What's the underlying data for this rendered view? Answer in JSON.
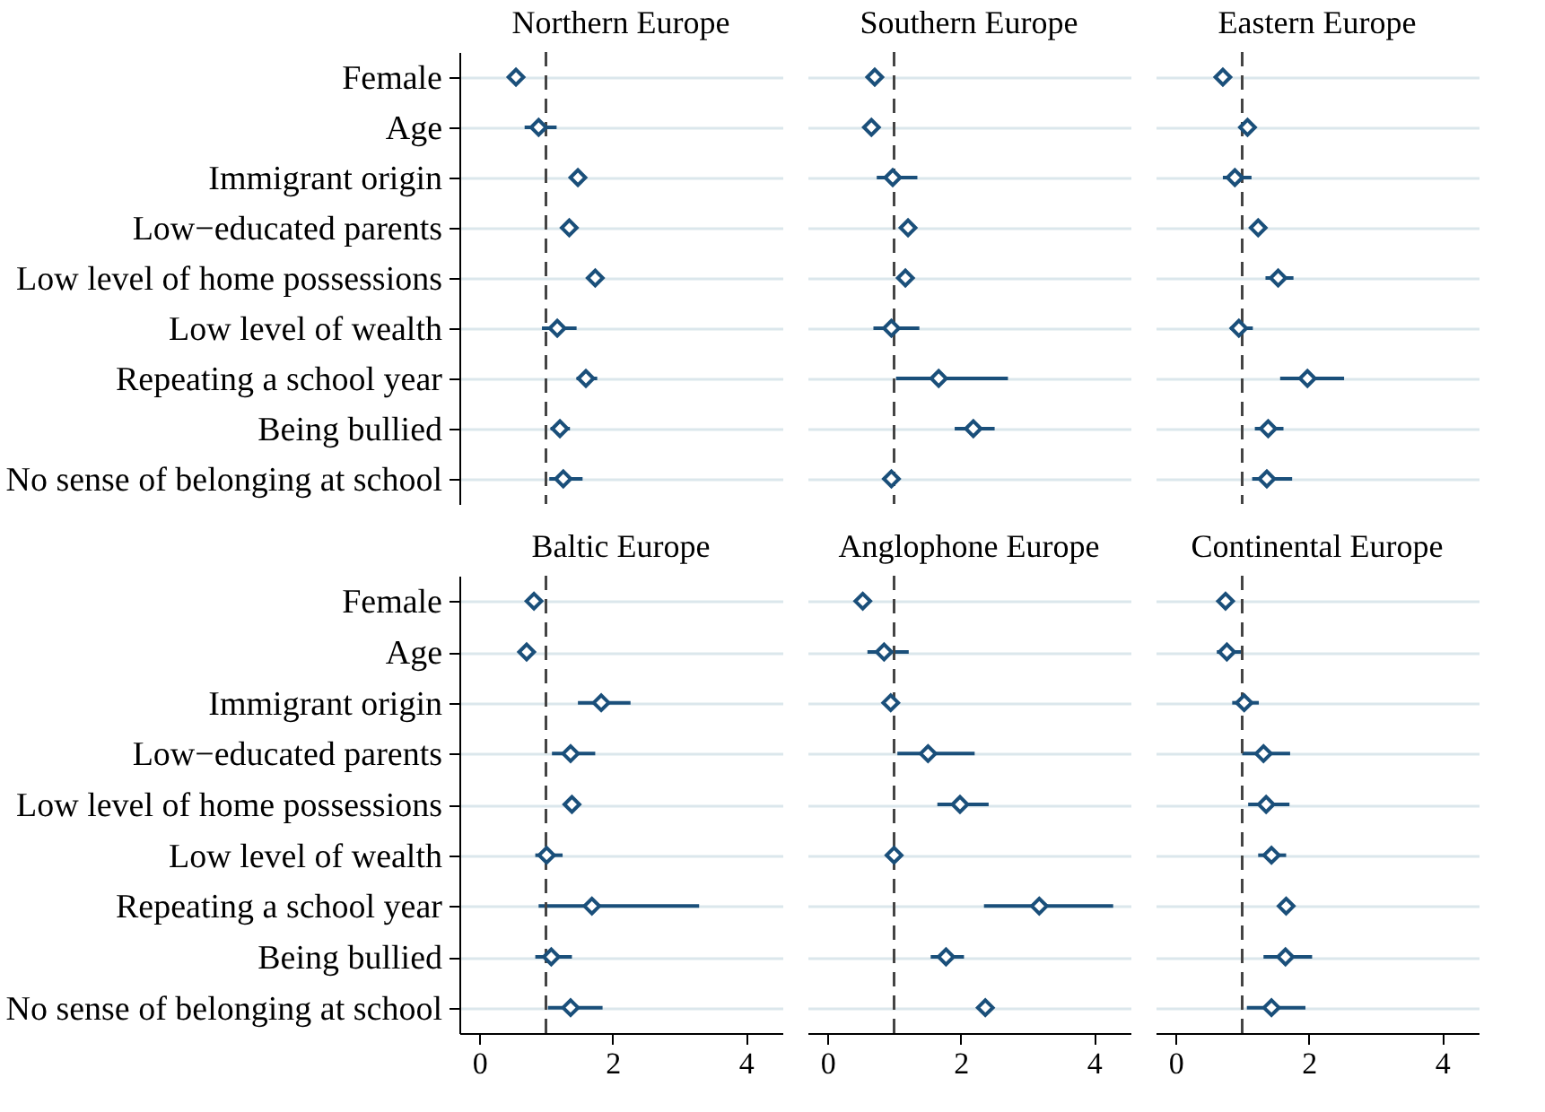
{
  "chart_data": [
    {
      "type": "scatter",
      "title": "Northern Europe",
      "orientation": "horizontal",
      "categories": [
        "Female",
        "Age",
        "Immigrant origin",
        "Low−educated parents",
        "Low level of home possessions",
        "Low level of wealth",
        "Repeating a school year",
        "Being bullied",
        "No sense of belonging at school"
      ],
      "values": [
        0.55,
        0.89,
        1.48,
        1.35,
        1.74,
        1.17,
        1.6,
        1.21,
        1.26
      ],
      "errors": [
        null,
        [
          0.68,
          1.16
        ],
        null,
        null,
        null,
        [
          0.94,
          1.46
        ],
        [
          1.46,
          1.77
        ],
        [
          1.07,
          1.36
        ],
        [
          1.05,
          1.55
        ]
      ],
      "color": "#1a4f7a",
      "marker": "diamond",
      "xlim": [
        -0.3,
        4.55
      ],
      "xticks": [
        0,
        2,
        4
      ],
      "ref_lines": [
        {
          "axis": "x",
          "value": 1,
          "line_style": "dashed"
        }
      ],
      "grid": "y",
      "tick_labels": "y"
    },
    {
      "type": "scatter",
      "title": "Southern Europe",
      "orientation": "horizontal",
      "categories": [
        null,
        null,
        null,
        null,
        null,
        null,
        null,
        null,
        null
      ],
      "values": [
        0.71,
        0.66,
        0.98,
        1.21,
        1.17,
        0.96,
        1.67,
        2.19,
        0.96
      ],
      "errors": [
        null,
        null,
        [
          0.74,
          1.35
        ],
        null,
        null,
        [
          0.69,
          1.38
        ],
        [
          1.03,
          2.71
        ],
        [
          1.91,
          2.51
        ],
        null
      ],
      "color": "#1a4f7a",
      "marker": "diamond",
      "xlim": [
        -0.3,
        4.55
      ],
      "xticks": [
        0,
        2,
        4
      ],
      "ref_lines": [
        {
          "axis": "x",
          "value": 1,
          "line_style": "dashed"
        }
      ],
      "grid": "y",
      "tick_labels": false
    },
    {
      "type": "scatter",
      "title": "Eastern Europe",
      "orientation": "horizontal",
      "categories": [
        null,
        null,
        null,
        null,
        null,
        null,
        null,
        null,
        null
      ],
      "values": [
        0.71,
        1.08,
        0.89,
        1.24,
        1.54,
        0.95,
        1.98,
        1.39,
        1.37
      ],
      "errors": [
        null,
        null,
        [
          0.71,
          1.14
        ],
        null,
        [
          1.35,
          1.77
        ],
        [
          0.82,
          1.16
        ],
        [
          1.57,
          2.53
        ],
        [
          1.19,
          1.62
        ],
        [
          1.15,
          1.75
        ]
      ],
      "color": "#1a4f7a",
      "marker": "diamond",
      "xlim": [
        -0.3,
        4.55
      ],
      "xticks": [
        0,
        2,
        4
      ],
      "ref_lines": [
        {
          "axis": "x",
          "value": 1,
          "line_style": "dashed"
        }
      ],
      "grid": "y",
      "tick_labels": false
    },
    {
      "type": "scatter",
      "title": "Baltic Europe",
      "orientation": "horizontal",
      "categories": [
        "Female",
        "Age",
        "Immigrant origin",
        "Low−educated parents",
        "Low level of home possessions",
        "Low level of wealth",
        "Repeating a school year",
        "Being bullied",
        "No sense of belonging at school"
      ],
      "values": [
        0.82,
        0.71,
        1.83,
        1.37,
        1.39,
        1.01,
        1.69,
        1.08,
        1.37
      ],
      "errors": [
        null,
        null,
        [
          1.48,
          2.27
        ],
        [
          1.09,
          1.74
        ],
        null,
        [
          0.84,
          1.25
        ],
        [
          0.89,
          3.3
        ],
        [
          0.84,
          1.39
        ],
        [
          1.03,
          1.85
        ]
      ],
      "color": "#1a4f7a",
      "marker": "diamond",
      "xlim": [
        -0.3,
        4.55
      ],
      "xticks": [
        0,
        2,
        4
      ],
      "ref_lines": [
        {
          "axis": "x",
          "value": 1,
          "line_style": "dashed"
        }
      ],
      "grid": "y"
    },
    {
      "type": "scatter",
      "title": "Anglophone Europe",
      "orientation": "horizontal",
      "categories": [
        null,
        null,
        null,
        null,
        null,
        null,
        null,
        null,
        null
      ],
      "values": [
        0.53,
        0.85,
        0.95,
        1.51,
        1.99,
        1.0,
        3.18,
        1.78,
        2.37
      ],
      "errors": [
        null,
        [
          0.6,
          1.22
        ],
        null,
        [
          1.05,
          2.21
        ],
        [
          1.65,
          2.42
        ],
        null,
        [
          2.35,
          4.29
        ],
        [
          1.55,
          2.05
        ],
        null
      ],
      "color": "#1a4f7a",
      "marker": "diamond",
      "xlim": [
        -0.3,
        4.55
      ],
      "xticks": [
        0,
        2,
        4
      ],
      "ref_lines": [
        {
          "axis": "x",
          "value": 1,
          "line_style": "dashed"
        }
      ],
      "grid": "y",
      "tick_labels": "x"
    },
    {
      "type": "scatter",
      "title": "Continental Europe",
      "orientation": "horizontal",
      "categories": [
        null,
        null,
        null,
        null,
        null,
        null,
        null,
        null,
        null
      ],
      "values": [
        0.75,
        0.77,
        1.03,
        1.32,
        1.36,
        1.44,
        1.66,
        1.65,
        1.44
      ],
      "errors": [
        null,
        [
          0.62,
          1.0
        ],
        [
          0.85,
          1.25
        ],
        [
          1.0,
          1.72
        ],
        [
          1.09,
          1.71
        ],
        [
          1.24,
          1.66
        ],
        null,
        [
          1.32,
          2.05
        ],
        [
          1.07,
          1.95
        ]
      ],
      "color": "#1a4f7a",
      "marker": "diamond",
      "xlim": [
        -0.3,
        4.55
      ],
      "xticks": [
        0,
        2,
        4
      ],
      "ref_lines": [
        {
          "axis": "x",
          "value": 1,
          "line_style": "dashed"
        }
      ],
      "grid": "y",
      "tick_labels": "x"
    }
  ]
}
